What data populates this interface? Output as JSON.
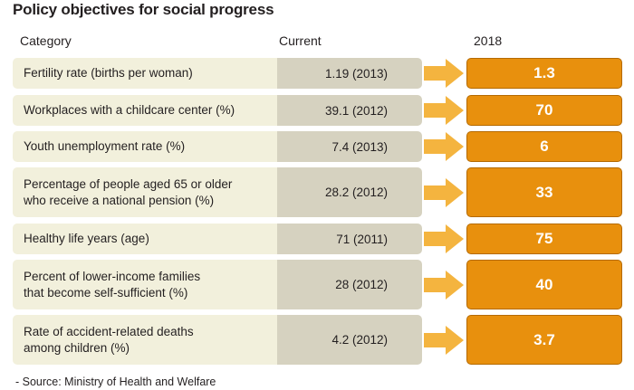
{
  "title": "Policy objectives for social progress",
  "headers": {
    "category": "Category",
    "current": "Current",
    "target": "2018"
  },
  "rows": [
    {
      "category": "Fertility rate (births per woman)",
      "current": "1.19 (2013)",
      "target": "1.3"
    },
    {
      "category": "Workplaces with a childcare center (%)",
      "current": "39.1 (2012)",
      "target": "70"
    },
    {
      "category": "Youth unemployment rate (%)",
      "current": "7.4 (2013)",
      "target": "6"
    },
    {
      "category": "Percentage of people aged 65 or older\nwho receive a national pension (%)",
      "current": "28.2 (2012)",
      "target": "33"
    },
    {
      "category": "Healthy life years (age)",
      "current": "71 (2011)",
      "target": "75"
    },
    {
      "category": "Percent of lower-income families\nthat become self-sufficient (%)",
      "current": "28 (2012)",
      "target": "40"
    },
    {
      "category": "Rate of accident-related deaths\namong children (%)",
      "current": "4.2 (2012)",
      "target": "3.7"
    }
  ],
  "source": "- Source: Ministry of Health and Welfare",
  "colors": {
    "accent": "#e8900d",
    "arrow": "#f4b43f",
    "category_bg": "#f2f0dc",
    "current_bg": "#d6d2c0"
  }
}
